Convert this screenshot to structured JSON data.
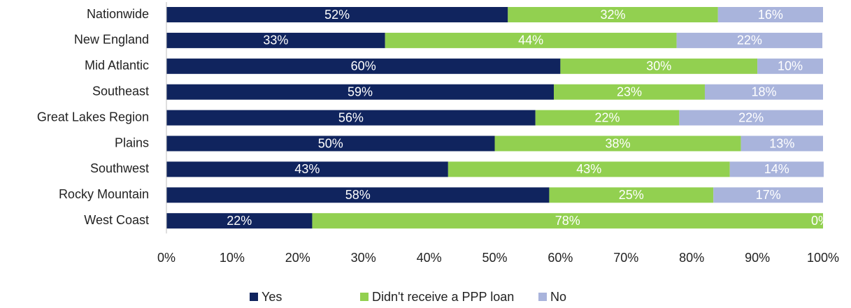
{
  "chart_data": {
    "type": "stacked-bar-horizontal",
    "categories": [
      "Nationwide",
      "New England",
      "Mid Atlantic",
      "Southeast",
      "Great Lakes Region",
      "Plains",
      "Southwest",
      "Rocky Mountain",
      "West Coast"
    ],
    "series": [
      {
        "name": "Yes",
        "color": "#10245e",
        "values": [
          52,
          33.3,
          60,
          59,
          56.2,
          50,
          42.9,
          58.3,
          22.2
        ],
        "value_labels": [
          "52%",
          "33%",
          "60%",
          "59%",
          "56%",
          "50%",
          "43%",
          "58%",
          "22%"
        ]
      },
      {
        "name": "Didn't receive a PPP loan",
        "color": "#92d050",
        "values": [
          32,
          44.4,
          30,
          23,
          21.9,
          37.5,
          42.9,
          25,
          77.8
        ],
        "value_labels": [
          "32%",
          "44%",
          "30%",
          "23%",
          "22%",
          "38%",
          "43%",
          "25%",
          "78%"
        ]
      },
      {
        "name": "No",
        "color": "#a9b4dc",
        "values": [
          16,
          22.2,
          10,
          18,
          21.9,
          12.5,
          14.3,
          16.7,
          0
        ],
        "value_labels": [
          "16%",
          "22%",
          "10%",
          "18%",
          "22%",
          "13%",
          "14%",
          "17%",
          "0%"
        ]
      }
    ],
    "xlim": [
      0,
      100
    ],
    "xticks": [
      {
        "value": 0,
        "label": "0%"
      },
      {
        "value": 10,
        "label": "10%"
      },
      {
        "value": 20,
        "label": "20%"
      },
      {
        "value": 30,
        "label": "30%"
      },
      {
        "value": 40,
        "label": "40%"
      },
      {
        "value": 50,
        "label": "50%"
      },
      {
        "value": 60,
        "label": "60%"
      },
      {
        "value": 70,
        "label": "70%"
      },
      {
        "value": 80,
        "label": "80%"
      },
      {
        "value": 90,
        "label": "90%"
      },
      {
        "value": 100,
        "label": "100%"
      }
    ],
    "legend": "bottom"
  }
}
